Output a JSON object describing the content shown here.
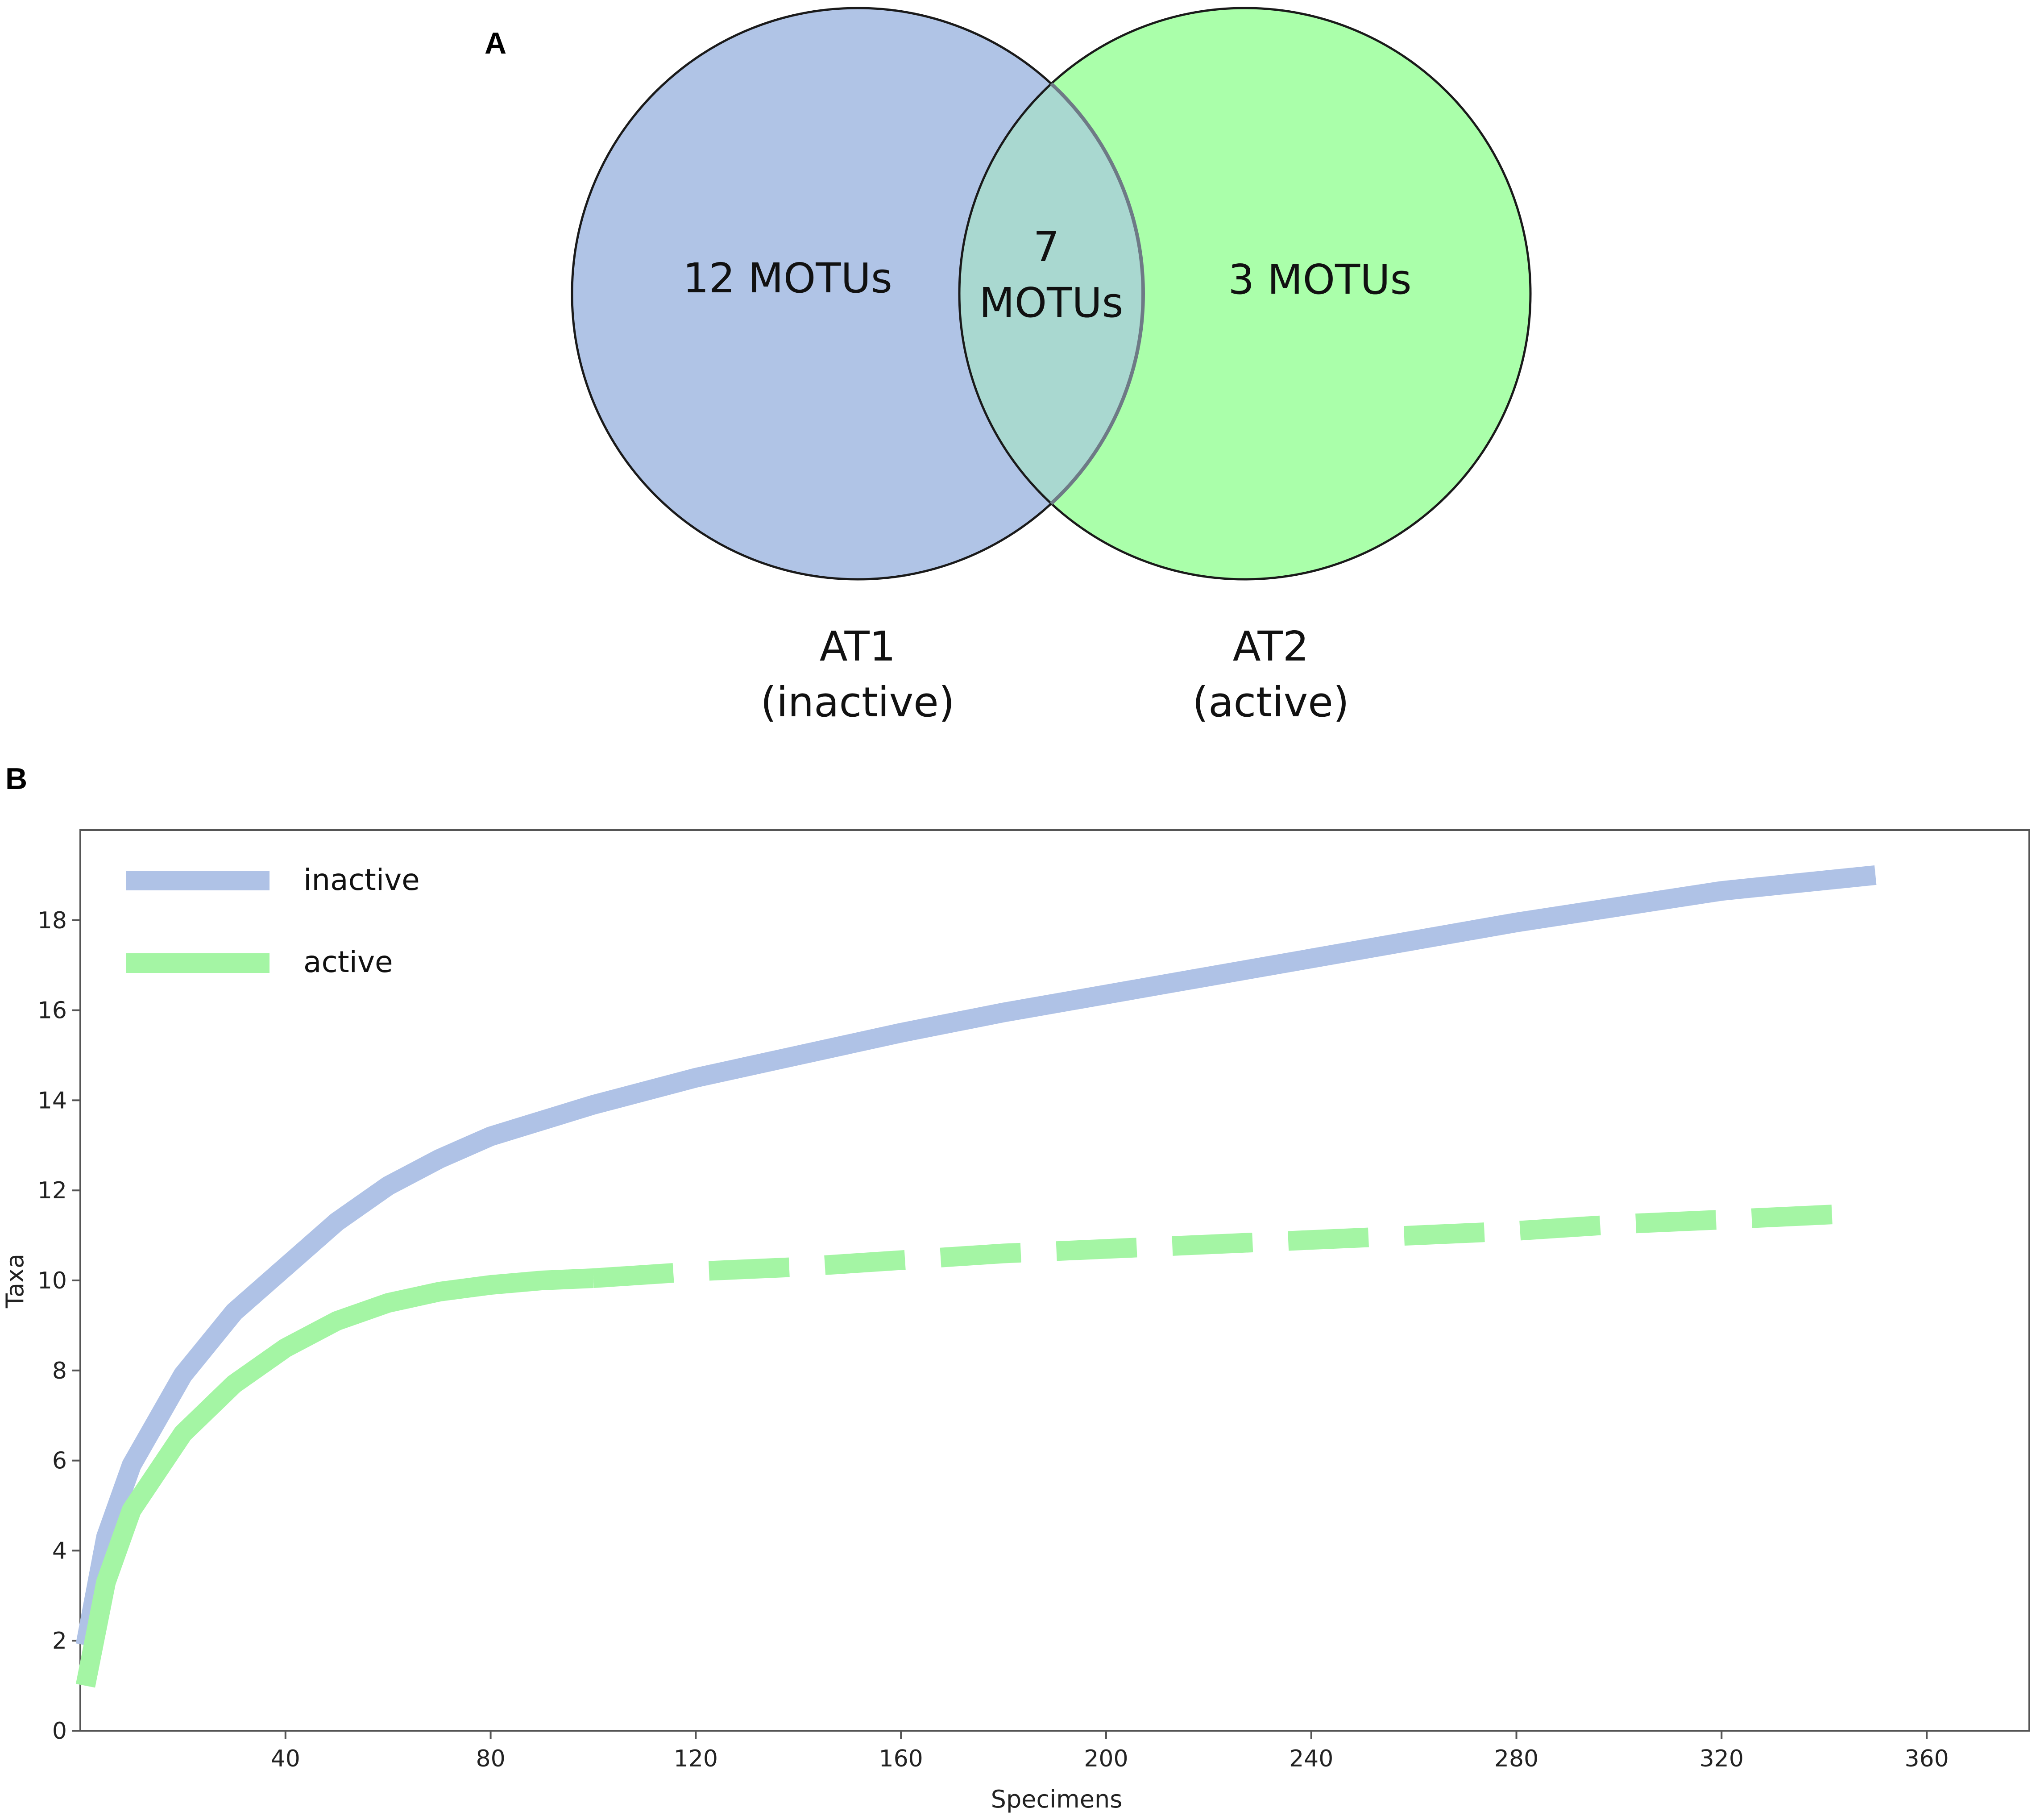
{
  "panels": {
    "a_label": "A",
    "b_label": "B"
  },
  "venn": {
    "left_only": "12 MOTUs",
    "overlap_line1": "7",
    "overlap_line2": "MOTUs",
    "right_only": "3 MOTUs",
    "left_set_line1": "AT1",
    "left_set_line2": "(inactive)",
    "right_set_line1": "AT2",
    "right_set_line2": "(active)",
    "colors": {
      "left": "#b0c4e6",
      "right": "#aaffaa",
      "overlap": "#a9d8d0",
      "outline": "#1a1a1a"
    }
  },
  "chart_data": {
    "type": "line",
    "xlabel": "Specimens",
    "ylabel": "Taxa",
    "xlim": [
      0,
      380
    ],
    "ylim": [
      0,
      20
    ],
    "x_ticks": [
      40,
      80,
      120,
      160,
      200,
      240,
      280,
      320,
      360
    ],
    "y_ticks": [
      0,
      2,
      4,
      6,
      8,
      10,
      12,
      14,
      16,
      18
    ],
    "legend_position": "top-left",
    "grid": false,
    "series": [
      {
        "name": "inactive",
        "color": "#afc2e6",
        "style": "solid",
        "x": [
          1,
          5,
          10,
          20,
          30,
          40,
          50,
          60,
          70,
          80,
          100,
          120,
          140,
          160,
          180,
          200,
          220,
          240,
          260,
          280,
          300,
          320,
          350
        ],
        "y": [
          1.9,
          4.3,
          5.9,
          7.9,
          9.3,
          10.3,
          11.3,
          12.1,
          12.7,
          13.2,
          13.9,
          14.5,
          15.0,
          15.5,
          15.95,
          16.35,
          16.75,
          17.15,
          17.55,
          17.95,
          18.3,
          18.65,
          19.0
        ]
      },
      {
        "name": "active",
        "color": "#a4f5a4",
        "style": "solid-then-dashed",
        "x": [
          1,
          5,
          10,
          20,
          30,
          40,
          50,
          60,
          70,
          80,
          90,
          100,
          120,
          140,
          160,
          180,
          200,
          220,
          240,
          260,
          280,
          300,
          320,
          348
        ],
        "y": [
          1.0,
          3.3,
          4.9,
          6.6,
          7.7,
          8.5,
          9.1,
          9.5,
          9.75,
          9.9,
          10.0,
          10.05,
          10.2,
          10.3,
          10.45,
          10.6,
          10.7,
          10.8,
          10.9,
          11.0,
          11.1,
          11.25,
          11.35,
          11.5
        ]
      }
    ]
  }
}
